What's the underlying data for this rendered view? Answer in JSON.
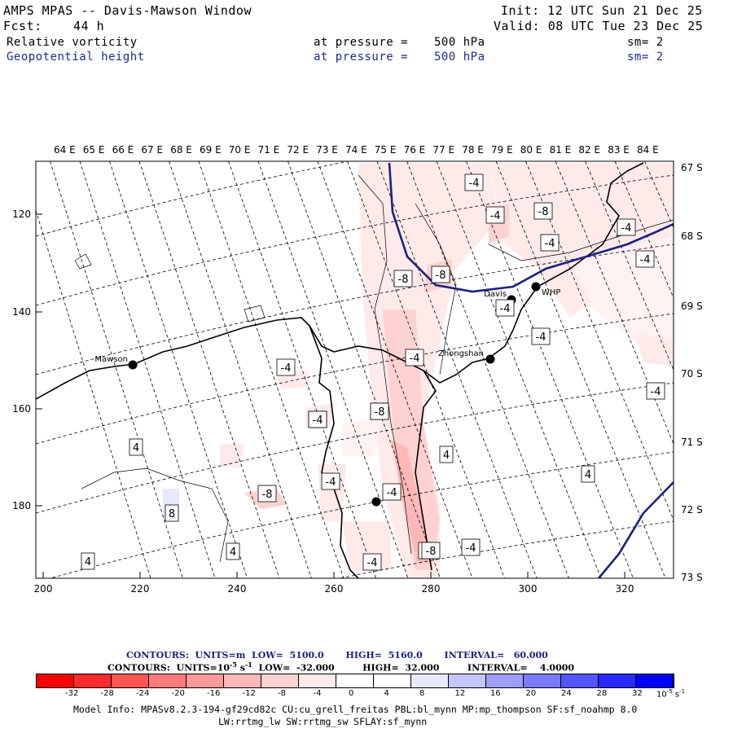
{
  "header": {
    "title": "AMPS MPAS -- Davis-Mawson Window",
    "fcst_label": "Fcst:",
    "fcst_value": "44 h",
    "init": "Init: 12 UTC Sun 21 Dec 25",
    "valid": "Valid: 08 UTC Tue 23 Dec 25",
    "field1": {
      "name": "Relative vorticity",
      "level_label": "at pressure =",
      "level": "500 hPa",
      "sm": "sm= 2"
    },
    "field2": {
      "name": "Geopotential height",
      "level_label": "at pressure =",
      "level": "500 hPa",
      "sm": "sm= 2"
    }
  },
  "map": {
    "lon_labels": [
      "64 E",
      "65 E",
      "66 E",
      "67 E",
      "68 E",
      "69 E",
      "70 E",
      "71 E",
      "72 E",
      "73 E",
      "74 E",
      "75 E",
      "76 E",
      "77 E",
      "78 E",
      "79 E",
      "80 E",
      "81 E",
      "82 E",
      "83 E",
      "84 E"
    ],
    "lat_labels": [
      "67 S",
      "68 S",
      "69 S",
      "70 S",
      "71 S",
      "72 S",
      "73 S"
    ],
    "x_ticks": [
      "200",
      "220",
      "240",
      "260",
      "280",
      "300",
      "320"
    ],
    "y_ticks": [
      "120",
      "140",
      "160",
      "180"
    ],
    "stations": [
      {
        "name": "Mawson"
      },
      {
        "name": "Davis"
      },
      {
        "name": "WHP"
      },
      {
        "name": "Zhongshan"
      },
      {
        "name": ""
      }
    ],
    "contour_labels": [
      "-4",
      "-8",
      "-4",
      "-4",
      "-4",
      "-8",
      "-4",
      "-8",
      "-4",
      "-4",
      "-4",
      "-4",
      "-4",
      "-4",
      "-4",
      "-4",
      "-8",
      "-8",
      "4",
      "-4",
      "4",
      "-8",
      "8",
      "4",
      "4",
      "4",
      "-4",
      "-8",
      "-4",
      "-4"
    ],
    "colors": {
      "height_contour": "#1a237e",
      "vort_contour": "#000000",
      "coast": "#000000"
    }
  },
  "legend": {
    "line1": "CONTOURS:  UNITS=m  LOW=  5100.0       HIGH=  5160.0       INTERVAL=   60.000",
    "line2": "CONTOURS:  UNITS=10",
    "line2_exp": "-5",
    "line2_rest": " s",
    "line2_exp2": "-1",
    "line2_tail": "  LOW=  -32.000         HIGH=  32.000         INTERVAL=    4.0000",
    "colorbar_labels": [
      "-32",
      "-28",
      "-24",
      "-20",
      "-16",
      "-12",
      "-8",
      "-4",
      "0",
      "4",
      "8",
      "12",
      "16",
      "20",
      "24",
      "28",
      "32"
    ],
    "colorbar_colors": [
      "#ff0000",
      "#ff2a2a",
      "#ff5555",
      "#ff7a7a",
      "#ff9a9a",
      "#ffb8b8",
      "#ffd2d2",
      "#ffeaea",
      "#ffffff",
      "#ffffff",
      "#e8e8ff",
      "#c4c4ff",
      "#9e9eff",
      "#7a7aff",
      "#5555ff",
      "#2a2aff",
      "#0000ff"
    ],
    "unit_label": "10",
    "unit_exp": "-5",
    "unit_s": " s",
    "unit_s_exp": "-1"
  },
  "footer": {
    "line1": "Model Info: MPASv8.2.3-194-gf29cd82c CU:cu_grell_freitas PBL:bl_mynn MP:mp_thompson SF:sf_noahmp 8.0",
    "line2": "LW:rrtmg_lw SW:rrtmg_sw SFLAY:sf_mynn"
  }
}
